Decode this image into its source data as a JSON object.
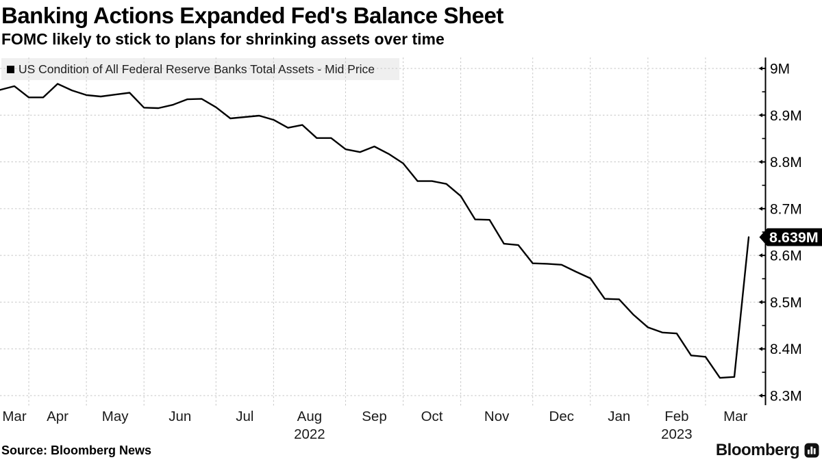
{
  "header": {
    "title": "Banking Actions Expanded Fed's Balance Sheet",
    "subtitle": "FOMC likely to stick to plans for shrinking assets over time"
  },
  "legend": {
    "marker_icon": "black-square",
    "label": "US Condition of All Federal Reserve Banks Total Assets - Mid Price"
  },
  "footer": {
    "source": "Source: Bloomberg News",
    "brand": "Bloomberg"
  },
  "colors": {
    "line": "#000000",
    "grid": "#c6c6c6",
    "legend_band": "#efefef",
    "axis": "#000000",
    "tag_bg": "#000000",
    "tag_text": "#ffffff",
    "tick_label": "#000000",
    "month_label": "#1a1a1a"
  },
  "chart_data": {
    "type": "line",
    "title": "Banking Actions Expanded Fed's Balance Sheet",
    "subtitle": "FOMC likely to stick to plans for shrinking assets over time",
    "legend_position": "top-left",
    "grid": true,
    "x_unit": "weekly",
    "ylim": [
      8.2795,
      9.0234
    ],
    "y_minor_tick_step": 0.05,
    "last_value_label": "8.639M",
    "y_ticks": [
      {
        "label": "9M",
        "value": 9.0
      },
      {
        "label": "8.9M",
        "value": 8.9
      },
      {
        "label": "8.8M",
        "value": 8.8
      },
      {
        "label": "8.7M",
        "value": 8.7
      },
      {
        "label": "8.6M",
        "value": 8.6
      },
      {
        "label": "8.5M",
        "value": 8.5
      },
      {
        "label": "8.4M",
        "value": 8.4
      },
      {
        "label": "8.3M",
        "value": 8.3
      }
    ],
    "x_tick_labels": [
      "Mar",
      "Apr",
      "May",
      "Jun",
      "Jul",
      "Aug",
      "Sep",
      "Oct",
      "Nov",
      "Dec",
      "Jan",
      "Feb",
      "Mar"
    ],
    "x_year_labels": [
      {
        "label": "2022",
        "month_index": 5
      },
      {
        "label": "2023",
        "month_index": 11
      }
    ],
    "series": [
      {
        "name": "US Condition of All Federal Reserve Banks Total Assets - Mid Price",
        "color": "#000000",
        "points": [
          [
            "2022-03-16",
            8.954
          ],
          [
            "2022-03-23",
            8.962
          ],
          [
            "2022-03-30",
            8.938
          ],
          [
            "2022-04-06",
            8.938
          ],
          [
            "2022-04-13",
            8.967
          ],
          [
            "2022-04-20",
            8.953
          ],
          [
            "2022-04-27",
            8.943
          ],
          [
            "2022-05-04",
            8.94
          ],
          [
            "2022-05-11",
            8.944
          ],
          [
            "2022-05-18",
            8.948
          ],
          [
            "2022-05-25",
            8.916
          ],
          [
            "2022-06-01",
            8.915
          ],
          [
            "2022-06-08",
            8.922
          ],
          [
            "2022-06-15",
            8.934
          ],
          [
            "2022-06-22",
            8.935
          ],
          [
            "2022-06-29",
            8.917
          ],
          [
            "2022-07-06",
            8.893
          ],
          [
            "2022-07-13",
            8.896
          ],
          [
            "2022-07-20",
            8.899
          ],
          [
            "2022-07-27",
            8.89
          ],
          [
            "2022-08-03",
            8.873
          ],
          [
            "2022-08-10",
            8.879
          ],
          [
            "2022-08-17",
            8.851
          ],
          [
            "2022-08-24",
            8.851
          ],
          [
            "2022-08-31",
            8.827
          ],
          [
            "2022-09-07",
            8.821
          ],
          [
            "2022-09-14",
            8.833
          ],
          [
            "2022-09-21",
            8.817
          ],
          [
            "2022-09-28",
            8.797
          ],
          [
            "2022-10-05",
            8.759
          ],
          [
            "2022-10-12",
            8.759
          ],
          [
            "2022-10-19",
            8.753
          ],
          [
            "2022-10-26",
            8.727
          ],
          [
            "2022-11-02",
            8.677
          ],
          [
            "2022-11-09",
            8.676
          ],
          [
            "2022-11-16",
            8.625
          ],
          [
            "2022-11-23",
            8.622
          ],
          [
            "2022-11-30",
            8.583
          ],
          [
            "2022-12-07",
            8.582
          ],
          [
            "2022-12-14",
            8.58
          ],
          [
            "2022-12-21",
            8.565
          ],
          [
            "2022-12-28",
            8.551
          ],
          [
            "2023-01-04",
            8.507
          ],
          [
            "2023-01-11",
            8.506
          ],
          [
            "2023-01-18",
            8.473
          ],
          [
            "2023-01-25",
            8.446
          ],
          [
            "2023-02-01",
            8.435
          ],
          [
            "2023-02-08",
            8.433
          ],
          [
            "2023-02-15",
            8.386
          ],
          [
            "2023-02-22",
            8.383
          ],
          [
            "2023-03-01",
            8.338
          ],
          [
            "2023-03-08",
            8.34
          ],
          [
            "2023-03-15",
            8.639
          ]
        ]
      }
    ]
  }
}
